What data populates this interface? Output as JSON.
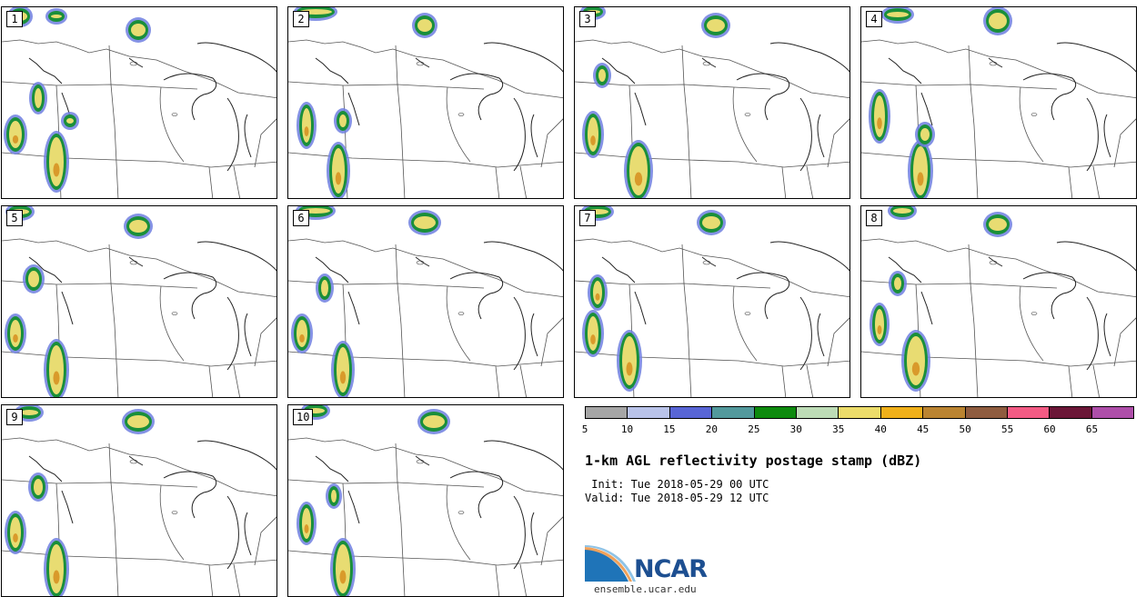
{
  "panels": [
    {
      "label": "1"
    },
    {
      "label": "2"
    },
    {
      "label": "3"
    },
    {
      "label": "4"
    },
    {
      "label": "5"
    },
    {
      "label": "6"
    },
    {
      "label": "7"
    },
    {
      "label": "8"
    },
    {
      "label": "9"
    },
    {
      "label": "10"
    }
  ],
  "colorbar": {
    "ticks": [
      "5",
      "10",
      "15",
      "20",
      "25",
      "30",
      "35",
      "40",
      "45",
      "50",
      "55",
      "60",
      "65"
    ],
    "colors": [
      "#a6a6a6",
      "#b9c3e9",
      "#5865d6",
      "#52999c",
      "#0d8a0d",
      "#bddcb6",
      "#ecdc6a",
      "#f0b01a",
      "#bb8431",
      "#8f5c3f",
      "#f35b84",
      "#6b1637",
      "#ae4ea9"
    ]
  },
  "title": "1-km AGL reflectivity postage stamp (dBZ)",
  "init_line": " Init: Tue 2018-05-29 00 UTC",
  "valid_line": "Valid: Tue 2018-05-29 12 UTC",
  "logo_text": "NCAR",
  "url": "ensemble.ucar.edu"
}
